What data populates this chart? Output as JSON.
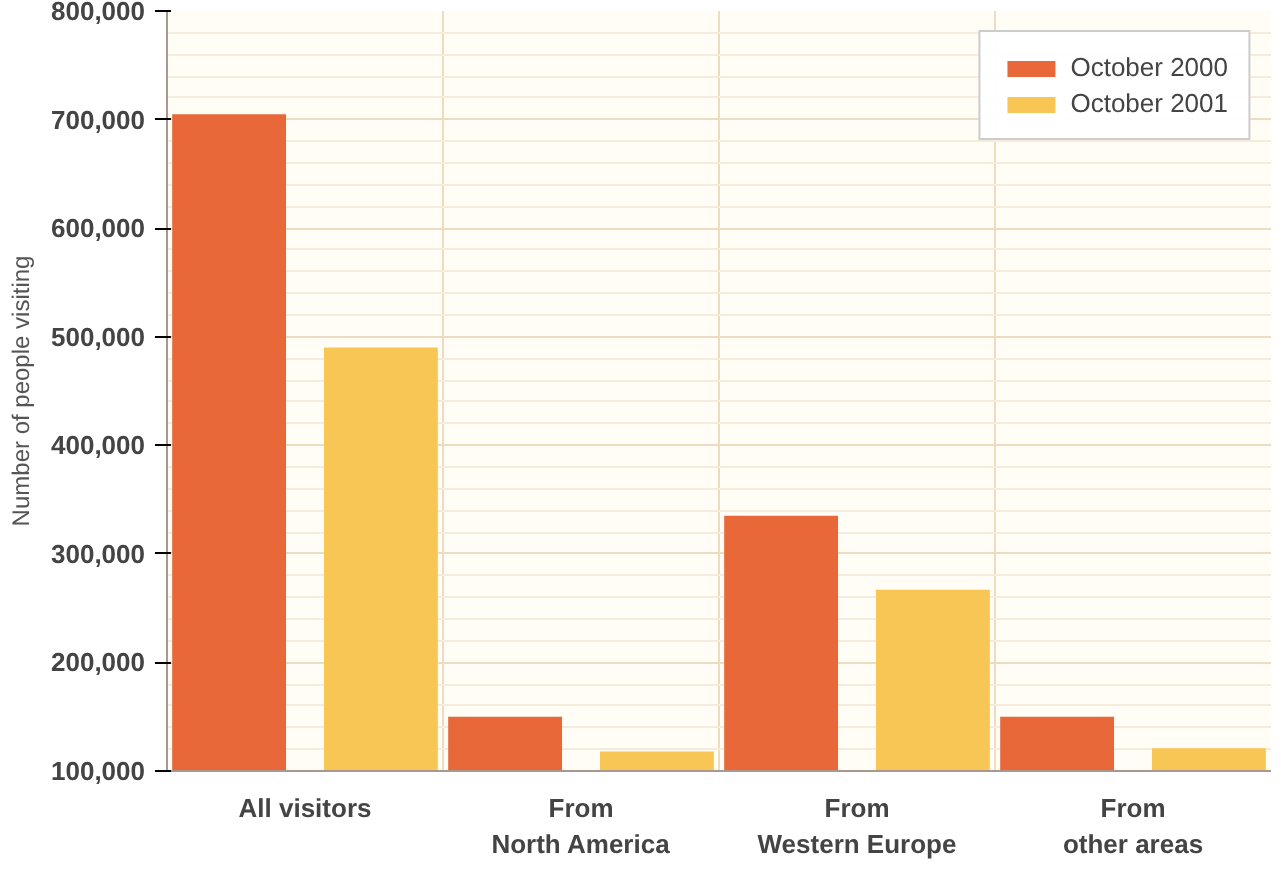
{
  "chart_data": {
    "type": "bar",
    "ylabel": "Number of people visiting",
    "categories": [
      "All visitors",
      "From North America",
      "From Western Europe",
      "From other areas"
    ],
    "series": [
      {
        "name": "October 2000",
        "color": "#e8683a",
        "values": [
          705000,
          150000,
          335000,
          150000
        ]
      },
      {
        "name": "October 2001",
        "color": "#f8c655",
        "values": [
          490000,
          118000,
          267000,
          121000
        ]
      }
    ],
    "ylim": [
      100000,
      800000
    ],
    "yticks": [
      {
        "value": 100000,
        "label": "100,000"
      },
      {
        "value": 200000,
        "label": "200,000"
      },
      {
        "value": 300000,
        "label": "300,000"
      },
      {
        "value": 400000,
        "label": "400,000"
      },
      {
        "value": 500000,
        "label": "500,000"
      },
      {
        "value": 600000,
        "label": "600,000"
      },
      {
        "value": 700000,
        "label": "700,000"
      },
      {
        "value": 800000,
        "label": "800,000"
      }
    ],
    "grid": true,
    "legend": "top right"
  }
}
